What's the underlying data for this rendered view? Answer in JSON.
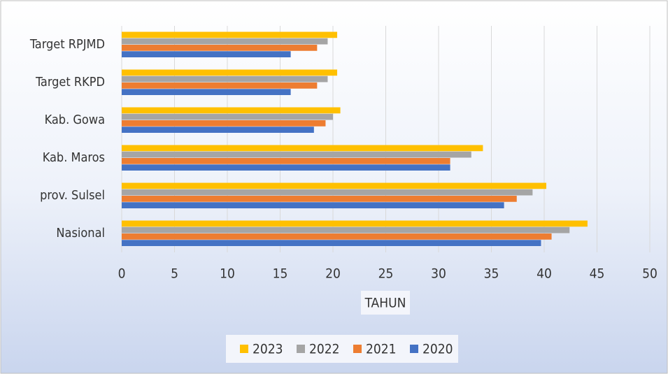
{
  "chart_data": {
    "type": "barh",
    "categories": [
      "Target RPJMD",
      "Target RKPD",
      "Kab. Gowa",
      "Kab. Maros",
      "prov. Sulsel",
      "Nasional"
    ],
    "series": [
      {
        "name": "2023",
        "color": "#ffc000",
        "values": [
          20.4,
          20.4,
          20.7,
          34.2,
          40.2,
          44.1
        ]
      },
      {
        "name": "2022",
        "color": "#a5a5a5",
        "values": [
          19.5,
          19.5,
          20.0,
          33.1,
          38.9,
          42.4
        ]
      },
      {
        "name": "2021",
        "color": "#ed7d31",
        "values": [
          18.5,
          18.5,
          19.3,
          31.1,
          37.4,
          40.7
        ]
      },
      {
        "name": "2020",
        "color": "#4472c4",
        "values": [
          16.0,
          16.0,
          18.2,
          31.1,
          36.2,
          39.7
        ]
      }
    ],
    "xlabel": "TAHUN",
    "xlim": [
      0,
      50
    ],
    "xticks": [
      0,
      5,
      10,
      15,
      20,
      25,
      30,
      35,
      40,
      45,
      50
    ],
    "grid": true,
    "legend": "bottom"
  }
}
